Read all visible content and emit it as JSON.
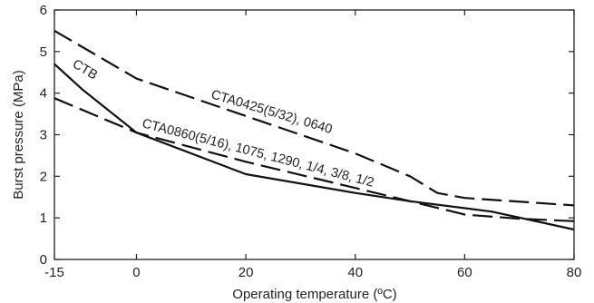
{
  "chart_data": {
    "type": "line",
    "xlabel": "Operating temperature (ºC)",
    "ylabel": "Burst pressure (MPa)",
    "xlim": [
      -15,
      80
    ],
    "ylim": [
      0,
      6
    ],
    "x_ticks": [
      -15,
      0,
      20,
      40,
      60,
      80
    ],
    "y_ticks": [
      0,
      1,
      2,
      3,
      4,
      5,
      6
    ],
    "grid": false,
    "series": [
      {
        "name": "CTB",
        "style": "solid",
        "points": [
          [
            -15,
            4.7
          ],
          [
            -10,
            4.1
          ],
          [
            0,
            3.05
          ],
          [
            20,
            2.05
          ],
          [
            40,
            1.6
          ],
          [
            50,
            1.4
          ],
          [
            65,
            1.15
          ],
          [
            80,
            0.72
          ]
        ]
      },
      {
        "name": "CTA0425(5/32), 0640",
        "style": "dashed",
        "points": [
          [
            -15,
            5.5
          ],
          [
            0,
            4.35
          ],
          [
            20,
            3.45
          ],
          [
            40,
            2.55
          ],
          [
            50,
            2.0
          ],
          [
            55,
            1.6
          ],
          [
            60,
            1.48
          ],
          [
            80,
            1.3
          ]
        ]
      },
      {
        "name": "CTA0860(5/16), 1075, 1290, 1/4, 3/8, 1/2",
        "style": "dashed",
        "points": [
          [
            -15,
            3.88
          ],
          [
            0,
            3.05
          ],
          [
            20,
            2.35
          ],
          [
            40,
            1.72
          ],
          [
            50,
            1.4
          ],
          [
            60,
            1.08
          ],
          [
            70,
            0.98
          ],
          [
            80,
            0.92
          ]
        ]
      }
    ]
  }
}
